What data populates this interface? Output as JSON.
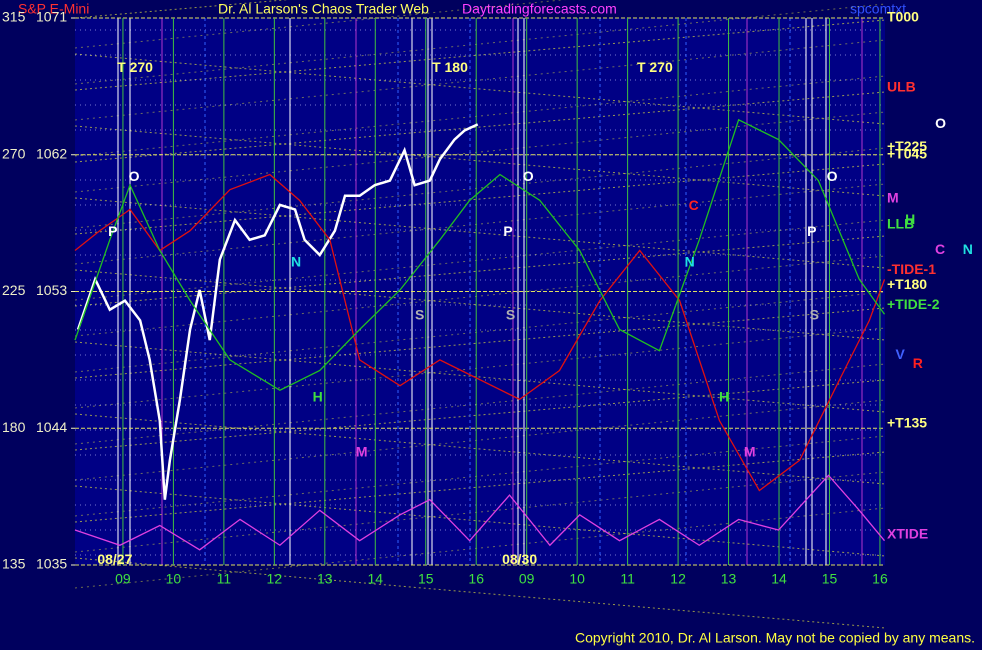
{
  "chart_data": {
    "type": "line",
    "title": "S&P E-Mini",
    "subtitle": "Dr. Al Larson's Chaos Trader Web",
    "site": "Daytradingforecasts.com",
    "file": "spcomtxt",
    "copyright": "Copyright 2010, Dr. Al Larson. May not be copied by any means.",
    "xlim": [
      -0.95,
      15.1
    ],
    "xticks": [
      {
        "value": 0,
        "label": "09"
      },
      {
        "value": 1,
        "label": "10"
      },
      {
        "value": 2,
        "label": "11"
      },
      {
        "value": 3,
        "label": "12"
      },
      {
        "value": 4,
        "label": "13"
      },
      {
        "value": 5,
        "label": "14"
      },
      {
        "value": 6,
        "label": "15"
      },
      {
        "value": 7,
        "label": "16"
      },
      {
        "value": 8,
        "label": "09"
      },
      {
        "value": 9,
        "label": "10"
      },
      {
        "value": 10,
        "label": "11"
      },
      {
        "value": 11,
        "label": "12"
      },
      {
        "value": 12,
        "label": "13"
      },
      {
        "value": 13,
        "label": "14"
      },
      {
        "value": 14,
        "label": "15"
      },
      {
        "value": 15,
        "label": "16"
      }
    ],
    "ylim": [
      1035,
      1071
    ],
    "yticks": [
      1035,
      1044,
      1053,
      1062,
      1071
    ],
    "y2lim": [
      135,
      315
    ],
    "y2ticks": [
      135,
      180,
      225,
      270,
      315
    ],
    "grid": true,
    "series": [
      {
        "color": "#ffffff",
        "x": [
          -0.89,
          -0.55,
          -0.26,
          0.04,
          0.34,
          0.53,
          0.73,
          0.83,
          0.93,
          1.13,
          1.33,
          1.52,
          1.72,
          1.92,
          2.22,
          2.51,
          2.81,
          3.11,
          3.41,
          3.6,
          3.9,
          4.2,
          4.4,
          4.69,
          4.99,
          5.29,
          5.58,
          5.78,
          6.08,
          6.28,
          6.57,
          6.77,
          7.03
        ],
        "values": [
          1050.5,
          1053.8,
          1051.8,
          1052.4,
          1051.1,
          1048.5,
          1044.5,
          1039.3,
          1041.9,
          1045.9,
          1050.5,
          1053.1,
          1049.8,
          1055.1,
          1057.7,
          1056.4,
          1056.7,
          1058.7,
          1058.4,
          1056.4,
          1055.4,
          1057.0,
          1059.3,
          1059.3,
          1060.0,
          1060.3,
          1062.3,
          1060.0,
          1060.3,
          1061.7,
          1063.0,
          1063.6,
          1064.0
        ]
      },
      {
        "color": "#e01010",
        "x": [
          -0.95,
          -0.46,
          0.14,
          0.73,
          1.33,
          2.12,
          2.91,
          3.5,
          4.1,
          4.69,
          5.49,
          6.28,
          7.07,
          7.86,
          8.65,
          9.45,
          10.24,
          11.03,
          11.82,
          12.61,
          13.41,
          14.2,
          14.79,
          15.09
        ],
        "values": [
          1055.7,
          1057.0,
          1058.4,
          1055.7,
          1057.0,
          1059.7,
          1060.7,
          1059.0,
          1056.4,
          1048.5,
          1046.8,
          1048.5,
          1047.2,
          1045.9,
          1047.8,
          1052.4,
          1055.7,
          1052.4,
          1044.5,
          1039.9,
          1041.9,
          1047.2,
          1051.1,
          1053.8
        ]
      },
      {
        "color": "#20c020",
        "x": [
          -0.95,
          -0.26,
          0.14,
          0.73,
          1.33,
          2.12,
          3.11,
          3.9,
          4.69,
          5.49,
          6.28,
          6.87,
          7.47,
          8.26,
          9.05,
          9.84,
          10.63,
          11.42,
          12.2,
          12.99,
          13.78,
          14.59,
          15.09
        ],
        "values": [
          1049.8,
          1056.4,
          1060.0,
          1055.7,
          1052.4,
          1048.5,
          1046.5,
          1047.8,
          1050.5,
          1053.1,
          1056.4,
          1059.0,
          1060.7,
          1059.0,
          1055.7,
          1050.5,
          1049.1,
          1056.4,
          1064.3,
          1063.0,
          1060.3,
          1053.8,
          1051.5
        ]
      },
      {
        "color": "#e040e0",
        "x": [
          -0.95,
          -0.06,
          0.73,
          1.52,
          2.32,
          3.11,
          3.9,
          4.69,
          5.49,
          6.08,
          6.87,
          7.66,
          8.46,
          9.05,
          9.84,
          10.63,
          11.42,
          12.2,
          12.99,
          13.98,
          14.59,
          15.09
        ],
        "values": [
          1037.3,
          1036.3,
          1037.6,
          1036.0,
          1038.0,
          1036.3,
          1038.6,
          1036.6,
          1038.3,
          1039.3,
          1036.6,
          1039.6,
          1036.3,
          1038.3,
          1036.6,
          1038.0,
          1036.3,
          1038.0,
          1037.3,
          1040.9,
          1038.6,
          1036.6
        ]
      }
    ],
    "annotations": [
      {
        "text": "T  270",
        "x": 0.24,
        "y": 1067.7,
        "color": "#ffff80"
      },
      {
        "text": "T  180",
        "x": 6.48,
        "y": 1067.7,
        "color": "#ffff80"
      },
      {
        "text": "T  270",
        "x": 10.54,
        "y": 1067.7,
        "color": "#ffff80"
      },
      {
        "text": "O",
        "x": 0.22,
        "y": 1060.5,
        "color": "#ffffff"
      },
      {
        "text": "P",
        "x": -0.2,
        "y": 1056.9,
        "color": "#ffffff"
      },
      {
        "text": "O",
        "x": 8.03,
        "y": 1060.5,
        "color": "#ffffff"
      },
      {
        "text": "P",
        "x": 7.63,
        "y": 1056.9,
        "color": "#ffffff"
      },
      {
        "text": "O",
        "x": 14.05,
        "y": 1060.5,
        "color": "#ffffff"
      },
      {
        "text": "P",
        "x": 13.65,
        "y": 1056.9,
        "color": "#ffffff"
      },
      {
        "text": "N",
        "x": 3.43,
        "y": 1054.9,
        "color": "#20e0e0"
      },
      {
        "text": "N",
        "x": 11.23,
        "y": 1054.9,
        "color": "#20e0e0"
      },
      {
        "text": "S",
        "x": 5.88,
        "y": 1051.4,
        "color": "#b0b0b0"
      },
      {
        "text": "S",
        "x": 7.68,
        "y": 1051.4,
        "color": "#b0b0b0"
      },
      {
        "text": "S",
        "x": 13.7,
        "y": 1051.4,
        "color": "#b0b0b0"
      },
      {
        "text": "H",
        "x": 3.86,
        "y": 1046.0,
        "color": "#40e040"
      },
      {
        "text": "H",
        "x": 11.91,
        "y": 1046.0,
        "color": "#40e040"
      },
      {
        "text": "M",
        "x": 4.73,
        "y": 1042.4,
        "color": "#e040e0"
      },
      {
        "text": "M",
        "x": 12.42,
        "y": 1042.4,
        "color": "#e040e0"
      },
      {
        "text": "C",
        "x": 11.31,
        "y": 1058.6,
        "color": "#ff2020"
      },
      {
        "text": "08/27",
        "x": -0.16,
        "y": 1035.3,
        "color": "#ffff80"
      },
      {
        "text": "08/30",
        "x": 7.86,
        "y": 1035.3,
        "color": "#ffff80"
      },
      {
        "text": "O",
        "x": 16.2,
        "y": 1064.0,
        "color": "#ffffff"
      },
      {
        "text": "H",
        "x": 15.6,
        "y": 1057.7,
        "color": "#40e040"
      },
      {
        "text": "C",
        "x": 16.19,
        "y": 1055.7,
        "color": "#e040e0"
      },
      {
        "text": "N",
        "x": 16.74,
        "y": 1055.7,
        "color": "#20e0e0"
      },
      {
        "text": "V",
        "x": 15.4,
        "y": 1048.8,
        "color": "#4060ff"
      },
      {
        "text": "R",
        "x": 15.75,
        "y": 1048.2,
        "color": "#ff2020"
      }
    ],
    "right_labels": [
      {
        "text": "T000",
        "y": 1071,
        "color": "#ffff80"
      },
      {
        "text": "ULB",
        "y": 1066.4,
        "color": "#ff3030"
      },
      {
        "text": "+T225",
        "y": 1062.5,
        "color": "#ffff80"
      },
      {
        "text": "+T045",
        "y": 1062.0,
        "color": "#ffff80"
      },
      {
        "text": "M",
        "y": 1059.1,
        "color": "#e040e0"
      },
      {
        "text": "LLB",
        "y": 1057.4,
        "color": "#40e040"
      },
      {
        "text": "-TIDE-1",
        "y": 1054.4,
        "color": "#ff3030"
      },
      {
        "text": "+T180",
        "y": 1053.4,
        "color": "#ffff80"
      },
      {
        "text": "+TIDE-2",
        "y": 1052.1,
        "color": "#40e040"
      },
      {
        "text": "+T135",
        "y": 1044.3,
        "color": "#ffff80"
      },
      {
        "text": "XTIDE",
        "y": 1037.0,
        "color": "#e040e0"
      }
    ]
  }
}
